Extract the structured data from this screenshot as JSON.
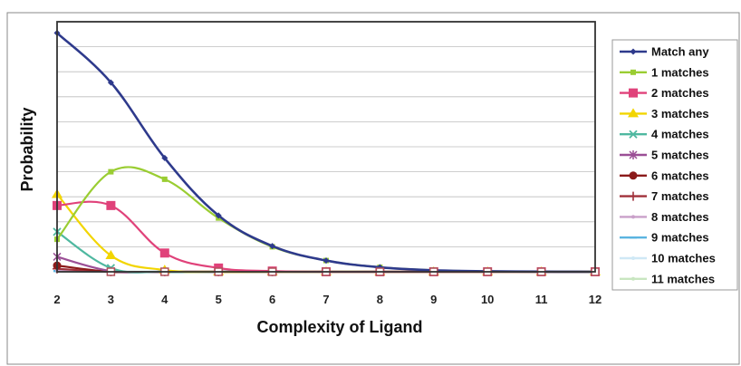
{
  "chart_data": {
    "type": "line",
    "xlabel": "Complexity of Ligand",
    "ylabel": "Probability",
    "x": [
      2,
      3,
      4,
      5,
      6,
      7,
      8,
      9,
      10,
      11,
      12
    ],
    "xlim": [
      2,
      12
    ],
    "ylim": [
      0,
      1
    ],
    "grid": "horizontal",
    "legend_position": "right",
    "series": [
      {
        "name": "Match any",
        "color": "#2e3a8c",
        "marker": "diamond",
        "values": [
          0.955,
          0.757,
          0.455,
          0.225,
          0.103,
          0.045,
          0.018,
          0.006,
          0.002,
          0.0005,
          0.0
        ]
      },
      {
        "name": "1 matches",
        "color": "#9acd32",
        "marker": "square",
        "values": [
          0.13,
          0.4,
          0.37,
          0.215,
          0.1,
          0.045,
          0.018,
          0.006,
          0.002,
          0.0005,
          0.0
        ]
      },
      {
        "name": "2 matches",
        "color": "#e0427a",
        "marker": "square-large",
        "values": [
          0.265,
          0.265,
          0.075,
          0.015,
          0.003,
          0.0,
          0.0,
          0.0,
          0.0,
          0.0,
          0.0
        ]
      },
      {
        "name": "3 matches",
        "color": "#f2d500",
        "marker": "triangle",
        "values": [
          0.31,
          0.065,
          0.007,
          0.0,
          0.0,
          0.0,
          0.0,
          0.0,
          0.0,
          0.0,
          0.0
        ]
      },
      {
        "name": "4 matches",
        "color": "#4fb8a0",
        "marker": "x",
        "values": [
          0.16,
          0.015,
          0.0,
          0.0,
          0.0,
          0.0,
          0.0,
          0.0,
          0.0,
          0.0,
          0.0
        ]
      },
      {
        "name": "5 matches",
        "color": "#9b4f96",
        "marker": "star",
        "values": [
          0.06,
          0.003,
          0.0,
          0.0,
          0.0,
          0.0,
          0.0,
          0.0,
          0.0,
          0.0,
          0.0
        ]
      },
      {
        "name": "6 matches",
        "color": "#8b1a1a",
        "marker": "circle",
        "values": [
          0.025,
          0.0,
          0.0,
          0.0,
          0.0,
          0.0,
          0.0,
          0.0,
          0.0,
          0.0,
          0.0
        ]
      },
      {
        "name": "7 matches",
        "color": "#a0303a",
        "marker": "plus",
        "values": [
          0.012,
          0.0,
          0.0,
          0.0,
          0.0,
          0.0,
          0.0,
          0.0,
          0.0,
          0.0,
          0.0
        ]
      },
      {
        "name": "8 matches",
        "color": "#c9a0c9",
        "marker": "dot",
        "values": [
          0.006,
          0.0,
          0.0,
          0.0,
          0.0,
          0.0,
          0.0,
          0.0,
          0.0,
          0.0,
          0.0
        ]
      },
      {
        "name": "9 matches",
        "color": "#5ab4e0",
        "marker": "dash",
        "values": [
          0.003,
          0.0,
          0.0,
          0.0,
          0.0,
          0.0,
          0.0,
          0.0,
          0.0,
          0.0,
          0.0
        ]
      },
      {
        "name": "10 matches",
        "color": "#cfe8f5",
        "marker": "dot",
        "values": [
          0.001,
          0.0,
          0.0,
          0.0,
          0.0,
          0.0,
          0.0,
          0.0,
          0.0,
          0.0,
          0.0
        ]
      },
      {
        "name": "11 matches",
        "color": "#c8e6c0",
        "marker": "dot",
        "values": [
          0.0005,
          0.0,
          0.0,
          0.0,
          0.0,
          0.0,
          0.0,
          0.0,
          0.0,
          0.0,
          0.0
        ]
      }
    ]
  }
}
